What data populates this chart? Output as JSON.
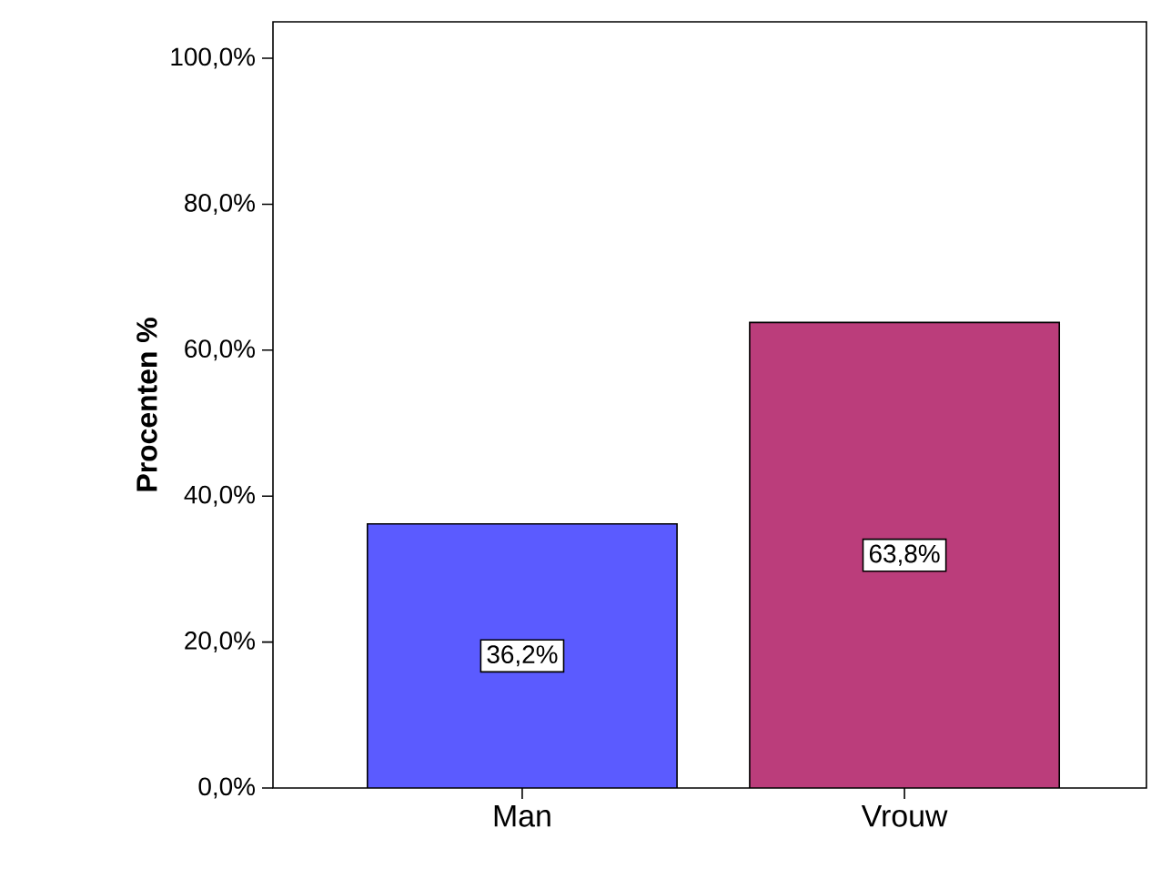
{
  "chart_data": {
    "type": "bar",
    "ylabel": "Procenten %",
    "categories": [
      "Man",
      "Vrouw"
    ],
    "values": [
      36.2,
      63.8
    ],
    "colors": [
      "#5b5bff",
      "#bb3d7b"
    ],
    "value_labels": [
      "36,2%",
      "63,8%"
    ],
    "ylim": [
      0,
      105
    ],
    "yticks": [
      {
        "value": 0,
        "label": "0,0%"
      },
      {
        "value": 20,
        "label": "20,0%"
      },
      {
        "value": 40,
        "label": "40,0%"
      },
      {
        "value": 60,
        "label": "60,0%"
      },
      {
        "value": 80,
        "label": "80,0%"
      },
      {
        "value": 100,
        "label": "100,0%"
      }
    ],
    "grid": false
  }
}
